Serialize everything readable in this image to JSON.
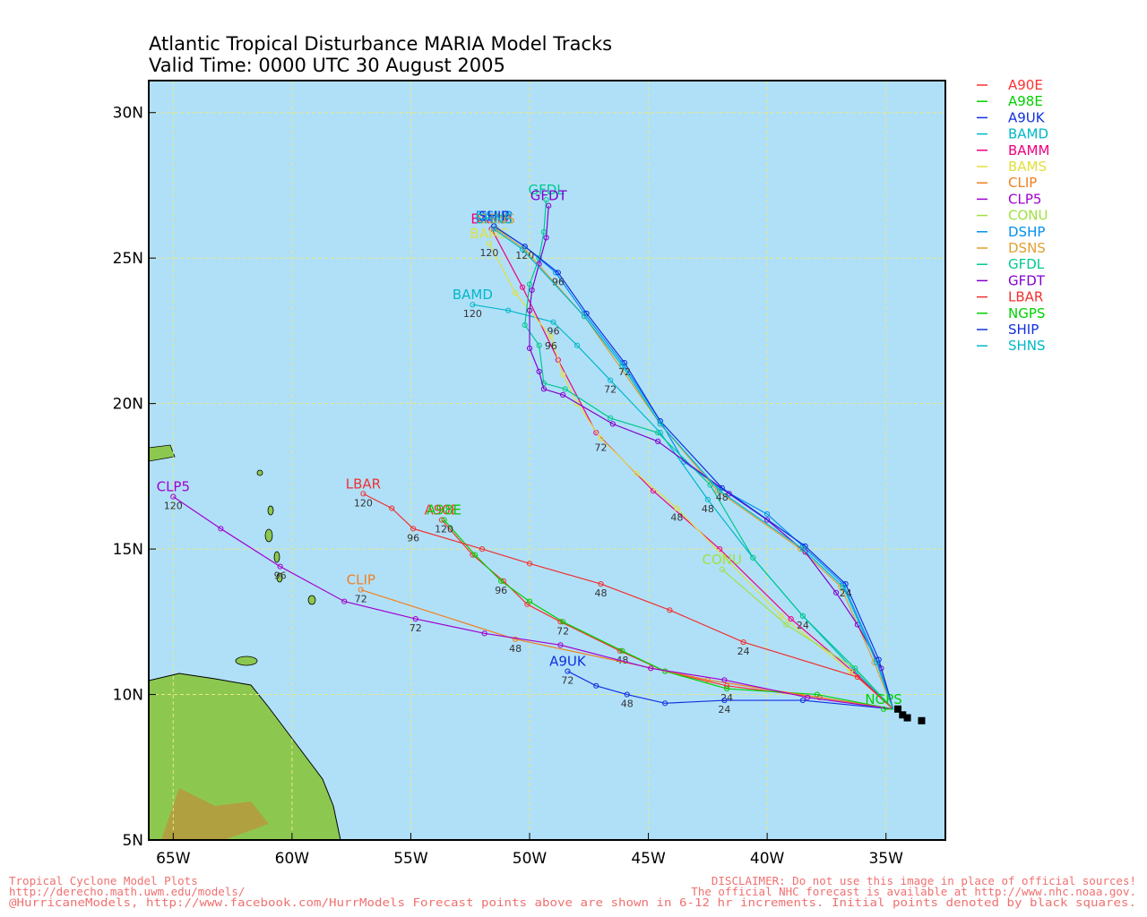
{
  "header": {
    "title": "Atlantic Tropical Disturbance MARIA Model Tracks",
    "subtitle": "Valid Time: 0000 UTC 30 August 2005"
  },
  "map": {
    "xlim": [
      -66.03,
      -32.5
    ],
    "ylim": [
      5,
      31.1
    ],
    "xticks": [
      {
        "value": -65,
        "label": "65W"
      },
      {
        "value": -60,
        "label": "60W"
      },
      {
        "value": -55,
        "label": "55W"
      },
      {
        "value": -50,
        "label": "50W"
      },
      {
        "value": -45,
        "label": "45W"
      },
      {
        "value": -40,
        "label": "40W"
      },
      {
        "value": -35,
        "label": "35W"
      }
    ],
    "yticks": [
      {
        "value": 5,
        "label": "5N"
      },
      {
        "value": 10,
        "label": "10N"
      },
      {
        "value": 15,
        "label": "15N"
      },
      {
        "value": 20,
        "label": "20N"
      },
      {
        "value": 25,
        "label": "25N"
      },
      {
        "value": 30,
        "label": "30N"
      }
    ],
    "grid": true,
    "tracks": [
      {
        "name": "A90E",
        "color": "#ff3030",
        "points": [
          {
            "lon": -34.7,
            "lat": 9.5
          },
          {
            "lon": -37.8,
            "lat": 9.9
          },
          {
            "lon": -41.7,
            "lat": 10.3
          },
          {
            "lon": -44.3,
            "lat": 10.8
          },
          {
            "lon": -46.2,
            "lat": 11.5
          },
          {
            "lon": -48.7,
            "lat": 12.5
          },
          {
            "lon": -50.1,
            "lat": 13.1
          },
          {
            "lon": -51.1,
            "lat": 13.9
          },
          {
            "lon": -52.4,
            "lat": 14.8
          },
          {
            "lon": -53.7,
            "lat": 16.0
          }
        ]
      },
      {
        "name": "A98E",
        "color": "#00d000",
        "points": [
          {
            "lon": -34.7,
            "lat": 9.5
          },
          {
            "lon": -37.9,
            "lat": 10.0
          },
          {
            "lon": -41.7,
            "lat": 10.2,
            "label": 24
          },
          {
            "lon": -44.3,
            "lat": 10.8
          },
          {
            "lon": -46.1,
            "lat": 11.5,
            "label": 48
          },
          {
            "lon": -48.6,
            "lat": 12.5,
            "label": 72
          },
          {
            "lon": -50.0,
            "lat": 13.2
          },
          {
            "lon": -51.2,
            "lat": 13.9,
            "label": 96
          },
          {
            "lon": -52.3,
            "lat": 14.8
          },
          {
            "lon": -53.6,
            "lat": 16.0,
            "label": 120
          }
        ]
      },
      {
        "name": "A9UK",
        "color": "#1030e0",
        "points": [
          {
            "lon": -34.7,
            "lat": 9.5
          },
          {
            "lon": -38.5,
            "lat": 9.8
          },
          {
            "lon": -41.8,
            "lat": 9.8,
            "label": 24
          },
          {
            "lon": -44.3,
            "lat": 9.7
          },
          {
            "lon": -45.9,
            "lat": 10.0,
            "label": 48
          },
          {
            "lon": -47.2,
            "lat": 10.3
          },
          {
            "lon": -48.4,
            "lat": 10.8,
            "label": 72
          }
        ]
      },
      {
        "name": "BAMD",
        "color": "#00b8c8",
        "points": [
          {
            "lon": -34.7,
            "lat": 9.5
          },
          {
            "lon": -36.3,
            "lat": 10.8
          },
          {
            "lon": -38.5,
            "lat": 12.7,
            "label": 24
          },
          {
            "lon": -40.6,
            "lat": 14.7
          },
          {
            "lon": -42.5,
            "lat": 16.7,
            "label": 48
          },
          {
            "lon": -44.5,
            "lat": 19.0
          },
          {
            "lon": -46.6,
            "lat": 20.8,
            "label": 72
          },
          {
            "lon": -48.0,
            "lat": 22.0
          },
          {
            "lon": -49.0,
            "lat": 22.8,
            "label": 96
          },
          {
            "lon": -50.9,
            "lat": 23.2
          },
          {
            "lon": -52.4,
            "lat": 23.4,
            "label": 120
          }
        ]
      },
      {
        "name": "BAMM",
        "color": "#f00080",
        "points": [
          {
            "lon": -34.7,
            "lat": 9.5
          },
          {
            "lon": -36.4,
            "lat": 10.8
          },
          {
            "lon": -39.0,
            "lat": 12.6
          },
          {
            "lon": -42.0,
            "lat": 15.0
          },
          {
            "lon": -44.8,
            "lat": 17.0
          },
          {
            "lon": -47.2,
            "lat": 19.0
          },
          {
            "lon": -48.8,
            "lat": 21.5
          },
          {
            "lon": -50.3,
            "lat": 24.0
          },
          {
            "lon": -51.6,
            "lat": 26.0
          }
        ]
      },
      {
        "name": "BAMS",
        "color": "#e0e040",
        "points": [
          {
            "lon": -34.7,
            "lat": 9.5
          },
          {
            "lon": -36.5,
            "lat": 10.8
          },
          {
            "lon": -39.4,
            "lat": 12.7
          },
          {
            "lon": -43.8,
            "lat": 16.4,
            "label": 48
          },
          {
            "lon": -45.5,
            "lat": 17.6
          },
          {
            "lon": -47.0,
            "lat": 18.8,
            "label": 72
          },
          {
            "lon": -48.0,
            "lat": 20.0
          },
          {
            "lon": -48.6,
            "lat": 21.0
          },
          {
            "lon": -49.1,
            "lat": 22.3,
            "label": 96
          },
          {
            "lon": -50.6,
            "lat": 23.8
          },
          {
            "lon": -51.7,
            "lat": 25.5,
            "label": 120
          }
        ]
      },
      {
        "name": "CLIP",
        "color": "#f08020",
        "points": [
          {
            "lon": -34.7,
            "lat": 9.5
          },
          {
            "lon": -42.5,
            "lat": 10.5
          },
          {
            "lon": -50.6,
            "lat": 11.9,
            "label": 48
          },
          {
            "lon": -57.1,
            "lat": 13.6,
            "label": 72
          }
        ]
      },
      {
        "name": "CLP5",
        "color": "#a000d0",
        "points": [
          {
            "lon": -34.7,
            "lat": 9.5
          },
          {
            "lon": -38.3,
            "lat": 9.9
          },
          {
            "lon": -41.8,
            "lat": 10.5
          },
          {
            "lon": -44.9,
            "lat": 10.9
          },
          {
            "lon": -48.7,
            "lat": 11.7
          },
          {
            "lon": -51.9,
            "lat": 12.1
          },
          {
            "lon": -54.8,
            "lat": 12.6,
            "label": 72
          },
          {
            "lon": -57.8,
            "lat": 13.2
          },
          {
            "lon": -60.5,
            "lat": 14.4,
            "label": 96
          },
          {
            "lon": -63.0,
            "lat": 15.7
          },
          {
            "lon": -65.0,
            "lat": 16.8,
            "label": 120
          }
        ]
      },
      {
        "name": "CONU",
        "color": "#a0e040",
        "points": [
          {
            "lon": -34.7,
            "lat": 9.5
          },
          {
            "lon": -36.3,
            "lat": 10.9
          },
          {
            "lon": -39.2,
            "lat": 12.4
          },
          {
            "lon": -41.9,
            "lat": 14.3
          }
        ]
      },
      {
        "name": "DSHP",
        "color": "#0090f0",
        "points": [
          {
            "lon": -34.7,
            "lat": 9.5
          },
          {
            "lon": -35.4,
            "lat": 11.2
          },
          {
            "lon": -36.8,
            "lat": 13.8
          },
          {
            "lon": -38.5,
            "lat": 15.1
          },
          {
            "lon": -40.0,
            "lat": 16.2
          },
          {
            "lon": -42.0,
            "lat": 17.1
          },
          {
            "lon": -43.5,
            "lat": 18.0
          },
          {
            "lon": -44.5,
            "lat": 19.4
          },
          {
            "lon": -46.1,
            "lat": 21.4
          },
          {
            "lon": -47.7,
            "lat": 23.1
          },
          {
            "lon": -48.9,
            "lat": 24.5
          },
          {
            "lon": -50.2,
            "lat": 25.4
          },
          {
            "lon": -51.5,
            "lat": 26.1
          }
        ]
      },
      {
        "name": "DSNS",
        "color": "#e0a030",
        "points": [
          {
            "lon": -34.7,
            "lat": 9.5
          },
          {
            "lon": -35.5,
            "lat": 11.1
          },
          {
            "lon": -36.9,
            "lat": 13.7
          },
          {
            "lon": -38.6,
            "lat": 15.0
          },
          {
            "lon": -42.1,
            "lat": 17.0
          },
          {
            "lon": -44.5,
            "lat": 19.3
          },
          {
            "lon": -47.7,
            "lat": 23.0
          },
          {
            "lon": -50.2,
            "lat": 25.3
          },
          {
            "lon": -51.4,
            "lat": 26.0
          }
        ]
      },
      {
        "name": "GFDL",
        "color": "#00c890",
        "points": [
          {
            "lon": -34.7,
            "lat": 9.5
          },
          {
            "lon": -36.3,
            "lat": 10.9
          },
          {
            "lon": -38.5,
            "lat": 12.7
          },
          {
            "lon": -40.6,
            "lat": 14.7
          },
          {
            "lon": -42.4,
            "lat": 17.2
          },
          {
            "lon": -44.6,
            "lat": 19.0
          },
          {
            "lon": -46.6,
            "lat": 19.5
          },
          {
            "lon": -48.5,
            "lat": 20.5
          },
          {
            "lon": -49.4,
            "lat": 20.7
          },
          {
            "lon": -49.6,
            "lat": 22.0
          },
          {
            "lon": -50.2,
            "lat": 22.7
          },
          {
            "lon": -50.0,
            "lat": 24.1
          },
          {
            "lon": -49.6,
            "lat": 25.0
          },
          {
            "lon": -49.4,
            "lat": 25.9
          },
          {
            "lon": -49.3,
            "lat": 27.0
          }
        ]
      },
      {
        "name": "GFDT",
        "color": "#8000d0",
        "points": [
          {
            "lon": -34.7,
            "lat": 9.5
          },
          {
            "lon": -35.2,
            "lat": 10.9
          },
          {
            "lon": -36.2,
            "lat": 12.4
          },
          {
            "lon": -37.1,
            "lat": 13.5
          },
          {
            "lon": -38.4,
            "lat": 14.9
          },
          {
            "lon": -40.0,
            "lat": 16.0
          },
          {
            "lon": -41.6,
            "lat": 16.9
          },
          {
            "lon": -44.6,
            "lat": 18.7
          },
          {
            "lon": -46.5,
            "lat": 19.3
          },
          {
            "lon": -48.6,
            "lat": 20.3
          },
          {
            "lon": -49.4,
            "lat": 20.5
          },
          {
            "lon": -49.6,
            "lat": 21.1
          },
          {
            "lon": -50.0,
            "lat": 21.9
          },
          {
            "lon": -50.0,
            "lat": 23.2
          },
          {
            "lon": -49.9,
            "lat": 23.9
          },
          {
            "lon": -49.6,
            "lat": 24.8
          },
          {
            "lon": -49.3,
            "lat": 25.7
          },
          {
            "lon": -49.2,
            "lat": 26.8
          }
        ]
      },
      {
        "name": "LBAR",
        "color": "#f03030",
        "points": [
          {
            "lon": -34.7,
            "lat": 9.5
          },
          {
            "lon": -36.2,
            "lat": 10.6
          },
          {
            "lon": -41.0,
            "lat": 11.8,
            "label": 24
          },
          {
            "lon": -44.1,
            "lat": 12.9
          },
          {
            "lon": -47.0,
            "lat": 13.8,
            "label": 48
          },
          {
            "lon": -50.0,
            "lat": 14.5
          },
          {
            "lon": -52.0,
            "lat": 15.0
          },
          {
            "lon": -54.9,
            "lat": 15.7,
            "label": 96
          },
          {
            "lon": -55.8,
            "lat": 16.4
          },
          {
            "lon": -57.0,
            "lat": 16.9,
            "label": 120
          }
        ]
      },
      {
        "name": "NGPS",
        "color": "#00d000",
        "points": [
          {
            "lon": -34.7,
            "lat": 9.5
          },
          {
            "lon": -35.1,
            "lat": 9.5
          }
        ]
      },
      {
        "name": "SHIP",
        "color": "#1030e0",
        "points": [
          {
            "lon": -34.7,
            "lat": 9.5
          },
          {
            "lon": -35.3,
            "lat": 11.2
          },
          {
            "lon": -36.7,
            "lat": 13.8,
            "label": 24
          },
          {
            "lon": -38.4,
            "lat": 15.1
          },
          {
            "lon": -41.9,
            "lat": 17.1,
            "label": 48
          },
          {
            "lon": -44.5,
            "lat": 19.4
          },
          {
            "lon": -46.0,
            "lat": 21.4,
            "label": 72
          },
          {
            "lon": -47.6,
            "lat": 23.1
          },
          {
            "lon": -48.8,
            "lat": 24.5,
            "label": 96
          },
          {
            "lon": -50.2,
            "lat": 25.4,
            "label": 120
          },
          {
            "lon": -51.5,
            "lat": 26.1
          }
        ]
      },
      {
        "name": "SHNS",
        "color": "#00b8c8",
        "points": [
          {
            "lon": -34.7,
            "lat": 9.5
          },
          {
            "lon": -35.4,
            "lat": 11.1
          },
          {
            "lon": -36.8,
            "lat": 13.7
          },
          {
            "lon": -38.5,
            "lat": 15.0
          },
          {
            "lon": -42.0,
            "lat": 17.0
          },
          {
            "lon": -44.5,
            "lat": 19.3
          },
          {
            "lon": -46.1,
            "lat": 21.3
          },
          {
            "lon": -47.7,
            "lat": 23.0
          },
          {
            "lon": -50.3,
            "lat": 25.3
          },
          {
            "lon": -51.5,
            "lat": 26.0
          }
        ]
      }
    ],
    "initial_positions": [
      {
        "lon": -34.5,
        "lat": 9.5
      },
      {
        "lon": -34.3,
        "lat": 9.3
      },
      {
        "lon": -34.1,
        "lat": 9.2
      },
      {
        "lon": -33.5,
        "lat": 9.1
      }
    ]
  },
  "footer": {
    "left": [
      "Tropical Cyclone Model Plots",
      "http://derecho.math.uwm.edu/models/"
    ],
    "right": [
      "DISCLAIMER: Do not use this image in place of official sources!",
      "The official NHC forecast is available at http://www.nhc.noaa.gov."
    ],
    "bottom": "@HurricaneModels, http://www.facebook.com/HurrModels  Forecast points above are shown in 6-12 hr increments. Initial points denoted by black squares."
  }
}
